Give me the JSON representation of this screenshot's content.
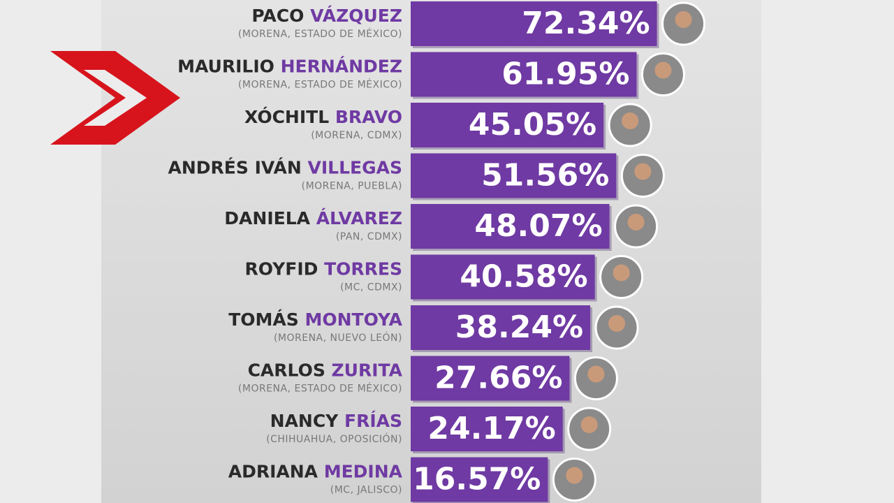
{
  "chart_data": {
    "type": "bar",
    "orientation": "horizontal",
    "first_names": [
      "PACO",
      "MAURILIO",
      "XÓCHITL",
      "ANDRÉS IVÁN",
      "DANIELA",
      "ROYFID",
      "TOMÁS",
      "CARLOS",
      "NANCY",
      "ADRIANA"
    ],
    "last_names": [
      "VÁZQUEZ",
      "HERNÁNDEZ",
      "BRAVO",
      "VILLEGAS",
      "ÁLVAREZ",
      "TORRES",
      "MONTOYA",
      "ZURITA",
      "FRÍAS",
      "MEDINA"
    ],
    "parties": [
      "(MORENA, ESTADO DE MÉXICO)",
      "(MORENA, ESTADO DE MÉXICO)",
      "(MORENA, CDMX)",
      "(MORENA, PUEBLA)",
      "(PAN, CDMX)",
      "(MC, CDMX)",
      "(MORENA, NUEVO LEÓN)",
      "(MORENA, ESTADO DE MÉXICO)",
      "(CHIHUAHUA, OPOSICIÓN)",
      "(MC, JALISCO)"
    ],
    "values": [
      72.34,
      61.95,
      45.05,
      51.56,
      48.07,
      40.58,
      38.24,
      27.66,
      24.17,
      16.57
    ],
    "value_labels": [
      "72.34%",
      "61.95%",
      "45.05%",
      "51.56%",
      "48.07%",
      "40.58%",
      "38.24%",
      "27.66%",
      "24.17%",
      "16.57%"
    ],
    "color": "#6f3aa3",
    "first_name_color": "#2a2a2a",
    "last_name_color": "#6f3aa3"
  }
}
